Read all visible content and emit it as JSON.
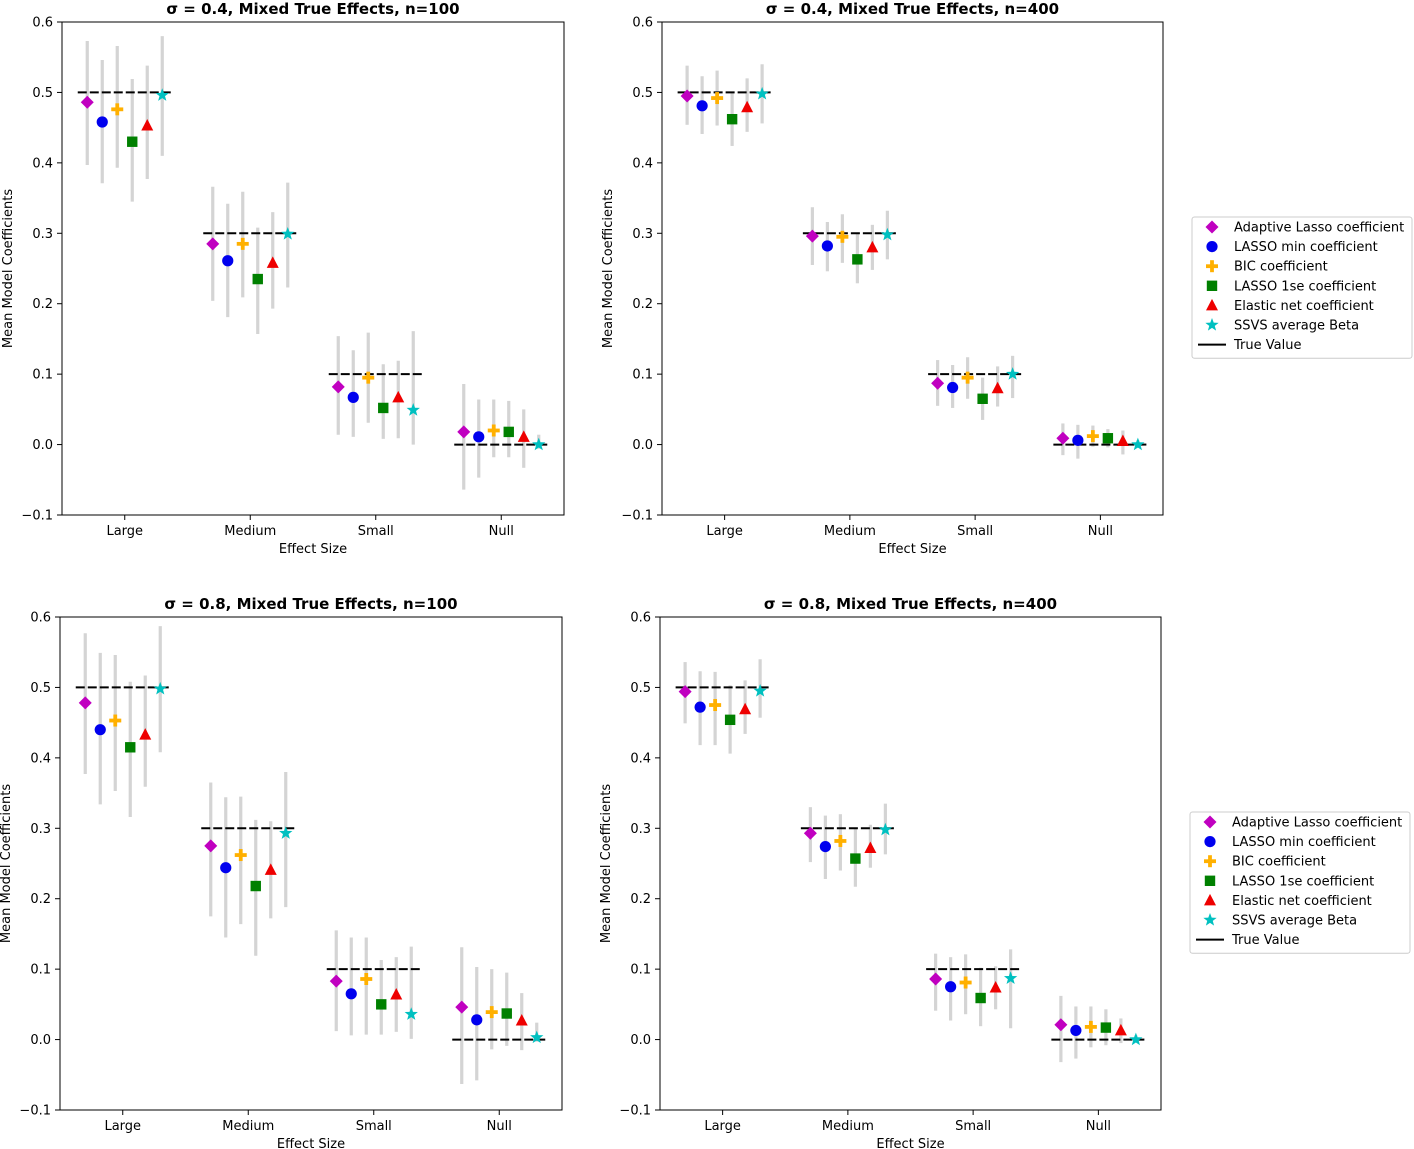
{
  "colors": {
    "adaptive_lasso": "#c000c0",
    "lasso_min": "#0000ee",
    "bic": "#ffb000",
    "lasso_1se": "#008000",
    "elastic_net": "#ee0000",
    "ssvs": "#00c0c0",
    "true_value": "#000000",
    "error_bar": "#d4d4d4"
  },
  "chart_data": [
    {
      "type": "scatter",
      "title": "σ = 0.4, Mixed True Effects, n=100",
      "xlabel": "Effect Size",
      "ylabel": "Mean Model Coefficients",
      "categories": [
        "Large",
        "Medium",
        "Small",
        "Null"
      ],
      "ylim": [
        -0.1,
        0.6
      ],
      "yticks": [
        "−0.1",
        "0.0",
        "0.1",
        "0.2",
        "0.3",
        "0.4",
        "0.5",
        "0.6"
      ],
      "true_values": [
        0.5,
        0.3,
        0.1,
        0.0
      ],
      "grid": false,
      "legend": "none",
      "series": [
        {
          "name": "Adaptive Lasso coefficient",
          "marker": "diamond",
          "values": [
            0.486,
            0.285,
            0.082,
            0.018
          ],
          "lower": [
            0.397,
            0.204,
            0.014,
            -0.064
          ],
          "upper": [
            0.573,
            0.366,
            0.154,
            0.086
          ]
        },
        {
          "name": "LASSO min coefficient",
          "marker": "circle",
          "values": [
            0.458,
            0.261,
            0.067,
            0.011
          ],
          "lower": [
            0.371,
            0.181,
            0.011,
            -0.047
          ],
          "upper": [
            0.546,
            0.342,
            0.134,
            0.064
          ]
        },
        {
          "name": "BIC coefficient",
          "marker": "plus",
          "values": [
            0.476,
            0.285,
            0.095,
            0.02
          ],
          "lower": [
            0.393,
            0.209,
            0.031,
            -0.018
          ],
          "upper": [
            0.566,
            0.359,
            0.159,
            0.064
          ]
        },
        {
          "name": "LASSO 1se coefficient",
          "marker": "square",
          "values": [
            0.43,
            0.235,
            0.052,
            0.018
          ],
          "lower": [
            0.345,
            0.157,
            0.008,
            -0.018
          ],
          "upper": [
            0.519,
            0.308,
            0.114,
            0.062
          ]
        },
        {
          "name": "Elastic net coefficient",
          "marker": "triangle",
          "values": [
            0.453,
            0.258,
            0.067,
            0.011
          ],
          "lower": [
            0.377,
            0.193,
            0.009,
            -0.033
          ],
          "upper": [
            0.538,
            0.33,
            0.119,
            0.05
          ]
        },
        {
          "name": "SSVS average Beta",
          "marker": "star",
          "values": [
            0.496,
            0.299,
            0.049,
            0.0
          ],
          "lower": [
            0.41,
            0.223,
            0.0,
            -0.006
          ],
          "upper": [
            0.58,
            0.372,
            0.161,
            0.014
          ]
        }
      ]
    },
    {
      "type": "scatter",
      "title": "σ = 0.4, Mixed True Effects, n=400",
      "xlabel": "Effect Size",
      "ylabel": "Mean Model Coefficients",
      "categories": [
        "Large",
        "Medium",
        "Small",
        "Null"
      ],
      "ylim": [
        -0.1,
        0.6
      ],
      "yticks": [
        "−0.1",
        "0.0",
        "0.1",
        "0.2",
        "0.3",
        "0.4",
        "0.5",
        "0.6"
      ],
      "true_values": [
        0.5,
        0.3,
        0.1,
        0.0
      ],
      "grid": false,
      "legend": "outside-right",
      "series": [
        {
          "name": "Adaptive Lasso coefficient",
          "marker": "diamond",
          "values": [
            0.495,
            0.296,
            0.087,
            0.009
          ],
          "lower": [
            0.454,
            0.255,
            0.055,
            -0.015
          ],
          "upper": [
            0.538,
            0.337,
            0.12,
            0.03
          ]
        },
        {
          "name": "LASSO min coefficient",
          "marker": "circle",
          "values": [
            0.481,
            0.282,
            0.081,
            0.006
          ],
          "lower": [
            0.441,
            0.246,
            0.052,
            -0.02
          ],
          "upper": [
            0.523,
            0.316,
            0.113,
            0.028
          ]
        },
        {
          "name": "BIC coefficient",
          "marker": "plus",
          "values": [
            0.492,
            0.295,
            0.095,
            0.012
          ],
          "lower": [
            0.453,
            0.258,
            0.065,
            -0.003
          ],
          "upper": [
            0.531,
            0.327,
            0.124,
            0.027
          ]
        },
        {
          "name": "LASSO 1se coefficient",
          "marker": "square",
          "values": [
            0.462,
            0.263,
            0.065,
            0.009
          ],
          "lower": [
            0.424,
            0.229,
            0.035,
            -0.004
          ],
          "upper": [
            0.501,
            0.299,
            0.095,
            0.022
          ]
        },
        {
          "name": "Elastic net coefficient",
          "marker": "triangle",
          "values": [
            0.479,
            0.28,
            0.08,
            0.005
          ],
          "lower": [
            0.444,
            0.248,
            0.054,
            -0.014
          ],
          "upper": [
            0.52,
            0.312,
            0.111,
            0.02
          ]
        },
        {
          "name": "SSVS average Beta",
          "marker": "star",
          "values": [
            0.498,
            0.298,
            0.1,
            0.0
          ],
          "lower": [
            0.456,
            0.263,
            0.066,
            -0.005
          ],
          "upper": [
            0.54,
            0.332,
            0.126,
            0.006
          ]
        }
      ]
    },
    {
      "type": "scatter",
      "title": "σ = 0.8, Mixed True Effects, n=100",
      "xlabel": "Effect Size",
      "ylabel": "Mean Model Coefficients",
      "categories": [
        "Large",
        "Medium",
        "Small",
        "Null"
      ],
      "ylim": [
        -0.1,
        0.6
      ],
      "yticks": [
        "−0.1",
        "0.0",
        "0.1",
        "0.2",
        "0.3",
        "0.4",
        "0.5",
        "0.6"
      ],
      "true_values": [
        0.5,
        0.3,
        0.1,
        0.0
      ],
      "grid": false,
      "legend": "none",
      "series": [
        {
          "name": "Adaptive Lasso coefficient",
          "marker": "diamond",
          "values": [
            0.478,
            0.275,
            0.083,
            0.046
          ],
          "lower": [
            0.377,
            0.175,
            0.012,
            -0.063
          ],
          "upper": [
            0.577,
            0.365,
            0.155,
            0.131
          ]
        },
        {
          "name": "LASSO min coefficient",
          "marker": "circle",
          "values": [
            0.44,
            0.244,
            0.065,
            0.028
          ],
          "lower": [
            0.334,
            0.145,
            0.006,
            -0.058
          ],
          "upper": [
            0.549,
            0.344,
            0.145,
            0.103
          ]
        },
        {
          "name": "BIC coefficient",
          "marker": "plus",
          "values": [
            0.453,
            0.262,
            0.086,
            0.039
          ],
          "lower": [
            0.353,
            0.164,
            0.007,
            -0.014
          ],
          "upper": [
            0.546,
            0.345,
            0.145,
            0.1
          ]
        },
        {
          "name": "LASSO 1se coefficient",
          "marker": "square",
          "values": [
            0.415,
            0.218,
            0.05,
            0.037
          ],
          "lower": [
            0.316,
            0.119,
            0.007,
            -0.009
          ],
          "upper": [
            0.508,
            0.312,
            0.113,
            0.095
          ]
        },
        {
          "name": "Elastic net coefficient",
          "marker": "triangle",
          "values": [
            0.433,
            0.241,
            0.064,
            0.027
          ],
          "lower": [
            0.359,
            0.172,
            0.011,
            -0.015
          ],
          "upper": [
            0.517,
            0.31,
            0.117,
            0.066
          ]
        },
        {
          "name": "SSVS average Beta",
          "marker": "star",
          "values": [
            0.498,
            0.293,
            0.036,
            0.003
          ],
          "lower": [
            0.408,
            0.188,
            0.001,
            -0.003
          ],
          "upper": [
            0.587,
            0.38,
            0.132,
            0.024
          ]
        }
      ]
    },
    {
      "type": "scatter",
      "title": "σ = 0.8, Mixed True Effects, n=400",
      "xlabel": "Effect Size",
      "ylabel": "Mean Model Coefficients",
      "categories": [
        "Large",
        "Medium",
        "Small",
        "Null"
      ],
      "ylim": [
        -0.1,
        0.6
      ],
      "yticks": [
        "−0.1",
        "0.0",
        "0.1",
        "0.2",
        "0.3",
        "0.4",
        "0.5",
        "0.6"
      ],
      "true_values": [
        0.5,
        0.3,
        0.1,
        0.0
      ],
      "grid": false,
      "legend": "outside-right",
      "series": [
        {
          "name": "Adaptive Lasso coefficient",
          "marker": "diamond",
          "values": [
            0.494,
            0.293,
            0.086,
            0.021
          ],
          "lower": [
            0.449,
            0.252,
            0.041,
            -0.032
          ],
          "upper": [
            0.536,
            0.33,
            0.122,
            0.062
          ]
        },
        {
          "name": "LASSO min coefficient",
          "marker": "circle",
          "values": [
            0.472,
            0.274,
            0.075,
            0.013
          ],
          "lower": [
            0.418,
            0.228,
            0.027,
            -0.027
          ],
          "upper": [
            0.523,
            0.318,
            0.117,
            0.047
          ]
        },
        {
          "name": "BIC coefficient",
          "marker": "plus",
          "values": [
            0.475,
            0.282,
            0.081,
            0.018
          ],
          "lower": [
            0.418,
            0.24,
            0.036,
            -0.011
          ],
          "upper": [
            0.522,
            0.32,
            0.121,
            0.047
          ]
        },
        {
          "name": "LASSO 1se coefficient",
          "marker": "square",
          "values": [
            0.454,
            0.257,
            0.059,
            0.017
          ],
          "lower": [
            0.406,
            0.217,
            0.019,
            -0.008
          ],
          "upper": [
            0.503,
            0.3,
            0.102,
            0.043
          ]
        },
        {
          "name": "Elastic net coefficient",
          "marker": "triangle",
          "values": [
            0.469,
            0.272,
            0.074,
            0.013
          ],
          "lower": [
            0.434,
            0.244,
            0.043,
            -0.005
          ],
          "upper": [
            0.51,
            0.305,
            0.104,
            0.03
          ]
        },
        {
          "name": "SSVS average Beta",
          "marker": "star",
          "values": [
            0.495,
            0.298,
            0.087,
            0.0
          ],
          "lower": [
            0.457,
            0.263,
            0.016,
            -0.004
          ],
          "upper": [
            0.54,
            0.335,
            0.128,
            0.006
          ]
        }
      ]
    }
  ],
  "legend": {
    "items": [
      {
        "label": "Adaptive Lasso coefficient",
        "marker": "diamond",
        "color_key": "adaptive_lasso"
      },
      {
        "label": "LASSO min coefficient",
        "marker": "circle",
        "color_key": "lasso_min"
      },
      {
        "label": "BIC coefficient",
        "marker": "plus",
        "color_key": "bic"
      },
      {
        "label": "LASSO 1se coefficient",
        "marker": "square",
        "color_key": "lasso_1se"
      },
      {
        "label": "Elastic net coefficient",
        "marker": "triangle",
        "color_key": "elastic_net"
      },
      {
        "label": "SSVS average Beta",
        "marker": "star",
        "color_key": "ssvs"
      },
      {
        "label": "True Value",
        "marker": "line",
        "color_key": "true_value"
      }
    ]
  }
}
